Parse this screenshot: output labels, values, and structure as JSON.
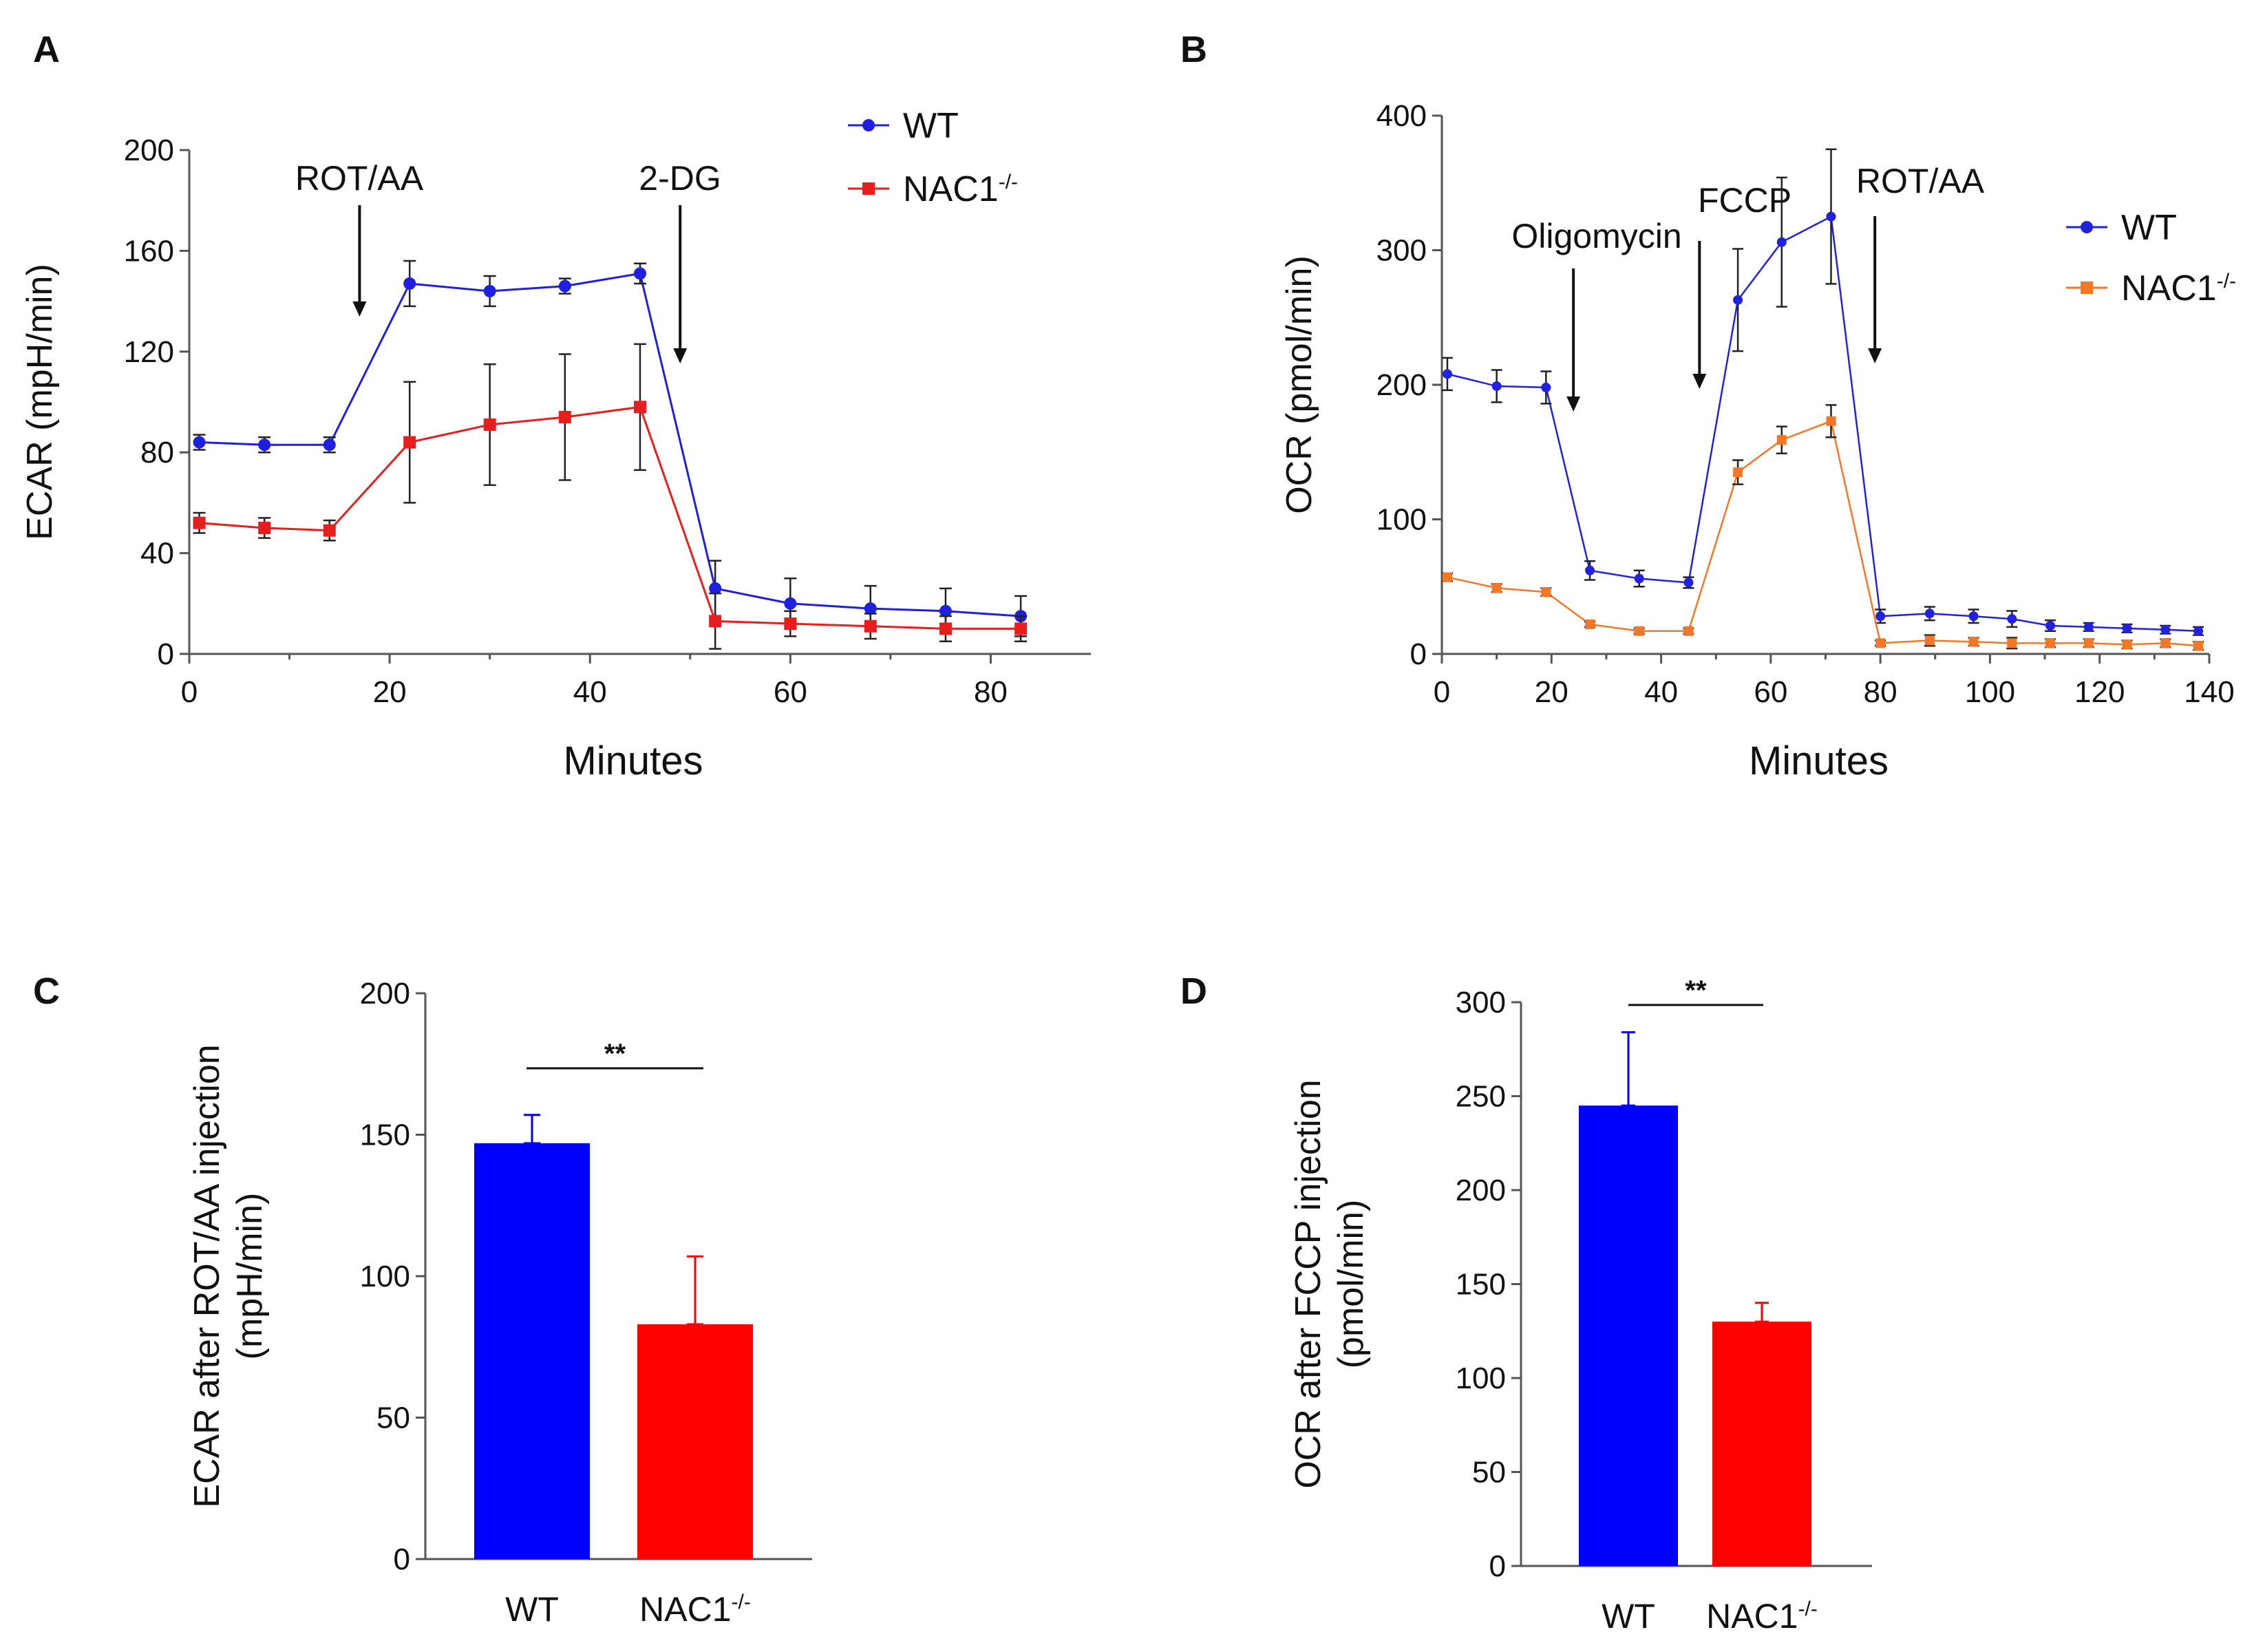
{
  "chart_data": [
    {
      "panel": "A",
      "type": "line",
      "ylabel": "ECAR (mpH/min)",
      "xlabel": "Minutes",
      "xlim": [
        0,
        90
      ],
      "ylim": [
        0,
        200
      ],
      "xticks": [
        0,
        20,
        40,
        60,
        80
      ],
      "yticks": [
        0,
        40,
        80,
        120,
        160,
        200
      ],
      "legend": "top-right",
      "annotations": [
        {
          "label": "ROT/AA",
          "x": 17
        },
        {
          "label": "2-DG",
          "x": 49
        }
      ],
      "series": [
        {
          "name": "WT",
          "color": "#1f1fe0",
          "marker": "circle",
          "x": [
            1,
            7.5,
            14,
            22,
            30,
            37.5,
            45,
            52.5,
            60,
            68,
            75.5,
            83
          ],
          "y": [
            84,
            83,
            83,
            147,
            144,
            146,
            151,
            26,
            20,
            18,
            17,
            15
          ],
          "err": [
            3,
            3,
            3,
            9,
            6,
            3,
            4,
            11,
            10,
            9,
            9,
            8
          ]
        },
        {
          "name": "NAC1",
          "sup": "-/-",
          "color": "#e61e1e",
          "marker": "square",
          "x": [
            1,
            7.5,
            14,
            22,
            30,
            37.5,
            45,
            52.5,
            60,
            68,
            75.5,
            83
          ],
          "y": [
            52,
            50,
            49,
            84,
            91,
            94,
            98,
            13,
            12,
            11,
            10,
            10
          ],
          "err": [
            4,
            4,
            4,
            24,
            24,
            25,
            25,
            11,
            5,
            5,
            5,
            5
          ]
        }
      ]
    },
    {
      "panel": "B",
      "type": "line",
      "ylabel": "OCR (pmol/min)",
      "xlabel": "Minutes",
      "xlim": [
        0,
        140
      ],
      "ylim": [
        0,
        400
      ],
      "xticks": [
        0,
        20,
        40,
        60,
        80,
        100,
        120,
        140
      ],
      "yticks": [
        0,
        100,
        200,
        300,
        400
      ],
      "legend": "top-right",
      "annotations": [
        {
          "label": "Oligomycin",
          "x": 24
        },
        {
          "label": "FCCP",
          "x": 47
        },
        {
          "label": "ROT/AA",
          "x": 79
        }
      ],
      "series": [
        {
          "name": "WT",
          "color": "#2222dd",
          "marker": "circle",
          "x": [
            1,
            10,
            19,
            27,
            36,
            45,
            54,
            62,
            71,
            80,
            89,
            97,
            104,
            111,
            118,
            125,
            132,
            138
          ],
          "y": [
            208,
            199,
            198,
            62,
            56,
            53,
            263,
            306,
            325,
            28,
            30,
            28,
            26,
            21,
            20,
            19,
            18,
            17
          ],
          "err": [
            12,
            12,
            12,
            7,
            6,
            4,
            38,
            48,
            50,
            5,
            5,
            5,
            6,
            4,
            3,
            3,
            3,
            3
          ]
        },
        {
          "name": "NAC1",
          "sup": "-/-",
          "color": "#f07828",
          "marker": "square",
          "x": [
            1,
            10,
            19,
            27,
            36,
            45,
            54,
            62,
            71,
            80,
            89,
            97,
            104,
            111,
            118,
            125,
            132,
            138
          ],
          "y": [
            57,
            49,
            46,
            22,
            17,
            17,
            135,
            159,
            173,
            8,
            10,
            9,
            8,
            8,
            8,
            7,
            8,
            6
          ],
          "err": [
            3,
            3,
            3,
            2,
            2,
            2,
            9,
            10,
            12,
            2,
            4,
            3,
            4,
            3,
            3,
            3,
            3,
            3
          ]
        }
      ]
    },
    {
      "panel": "C",
      "type": "bar",
      "ylabel_lines": [
        "ECAR after ROT/AA injection",
        "(mpH/min)"
      ],
      "ylim": [
        0,
        200
      ],
      "yticks": [
        0,
        50,
        100,
        150,
        200
      ],
      "categories": [
        {
          "name": "WT"
        },
        {
          "name": "NAC1",
          "sup": "-/-"
        }
      ],
      "values": [
        147,
        83
      ],
      "errors": [
        10,
        24
      ],
      "colors": [
        "#0000ff",
        "#ff0000"
      ],
      "significance": "**"
    },
    {
      "panel": "D",
      "type": "bar",
      "ylabel_lines": [
        "OCR after FCCP injection",
        "(pmol/min)"
      ],
      "ylim": [
        0,
        300
      ],
      "yticks": [
        0,
        50,
        100,
        150,
        200,
        250,
        300
      ],
      "categories": [
        {
          "name": "WT"
        },
        {
          "name": "NAC1",
          "sup": "-/-"
        }
      ],
      "values": [
        245,
        130
      ],
      "errors": [
        39,
        10
      ],
      "colors": [
        "#0000ff",
        "#ff0000"
      ],
      "significance": "**"
    }
  ]
}
